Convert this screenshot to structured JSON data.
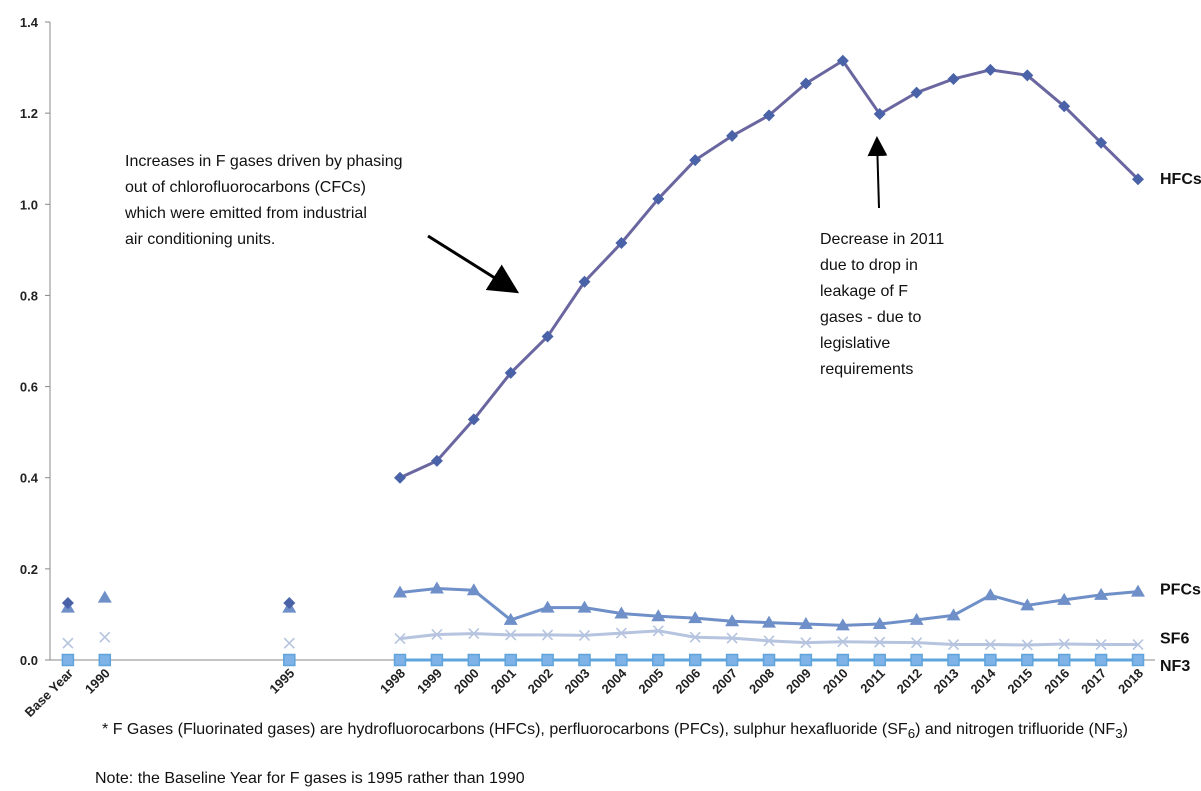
{
  "chart_data": {
    "type": "line",
    "categories": [
      "Base Year",
      "1990",
      "1995",
      "1998",
      "1999",
      "2000",
      "2001",
      "2002",
      "2003",
      "2004",
      "2005",
      "2006",
      "2007",
      "2008",
      "2009",
      "2010",
      "2011",
      "2012",
      "2013",
      "2014",
      "2015",
      "2016",
      "2017",
      "2018"
    ],
    "series": [
      {
        "name": "HFCs",
        "color": "#4a62a8",
        "line_color": "#6a66a0",
        "marker": "diamond",
        "values": [
          0.125,
          null,
          0.125,
          0.4,
          0.437,
          0.528,
          0.63,
          0.71,
          0.83,
          0.915,
          1.012,
          1.097,
          1.15,
          1.195,
          1.265,
          1.315,
          1.198,
          1.245,
          1.275,
          1.295,
          1.283,
          1.215,
          1.135,
          1.055
        ]
      },
      {
        "name": "PFCs",
        "color": "#6f8fc8",
        "line_color": "#6f8fc8",
        "marker": "triangle",
        "values": [
          0.115,
          0.137,
          0.115,
          0.148,
          0.157,
          0.153,
          0.088,
          0.115,
          0.115,
          0.102,
          0.096,
          0.092,
          0.085,
          0.082,
          0.079,
          0.076,
          0.079,
          0.088,
          0.098,
          0.142,
          0.12,
          0.132,
          0.143,
          0.15
        ]
      },
      {
        "name": "SF6",
        "color": "#b6c4df",
        "line_color": "#b6c4df",
        "marker": "cross",
        "values": [
          0.037,
          0.05,
          0.037,
          0.047,
          0.056,
          0.058,
          0.055,
          0.055,
          0.054,
          0.059,
          0.064,
          0.05,
          0.048,
          0.042,
          0.038,
          0.04,
          0.039,
          0.038,
          0.034,
          0.034,
          0.033,
          0.035,
          0.034,
          0.034
        ]
      },
      {
        "name": "NF3",
        "color": "#5fa4dc",
        "line_color": "#5fa4dc",
        "marker": "square",
        "values": [
          0,
          0,
          0,
          0,
          0,
          0,
          0,
          0,
          0,
          0,
          0,
          0,
          0,
          0,
          0,
          0,
          0,
          0,
          0,
          0,
          0,
          0,
          0,
          0
        ]
      }
    ],
    "ylim": [
      0,
      1.4
    ],
    "yticks": [
      {
        "value": 0,
        "label": "0.0"
      },
      0.2,
      0.4,
      0.6,
      0.8,
      {
        "value": 1,
        "label": "1.0"
      },
      1.2,
      1.4
    ],
    "annotations": [
      [
        "Increases in F gases driven by phasing",
        "out of chlorofluorocarbons (CFCs)",
        "which were emitted from industrial",
        "air conditioning units."
      ],
      [
        "Decrease in 2011",
        "due to drop in",
        "leakage of F",
        "gases - due to",
        "legislative",
        "requirements"
      ]
    ],
    "footnote": [
      "* F Gases (Fluorinated gases) are hydrofluorocarbons (HFCs), perfluorocarbons (PFCs), sulphur hexafluoride (SF",
      "6",
      ") and nitrogen trifluoride (NF",
      "3",
      ")"
    ],
    "note": "Note: the Baseline Year for F gases is 1995 rather than 1990"
  }
}
